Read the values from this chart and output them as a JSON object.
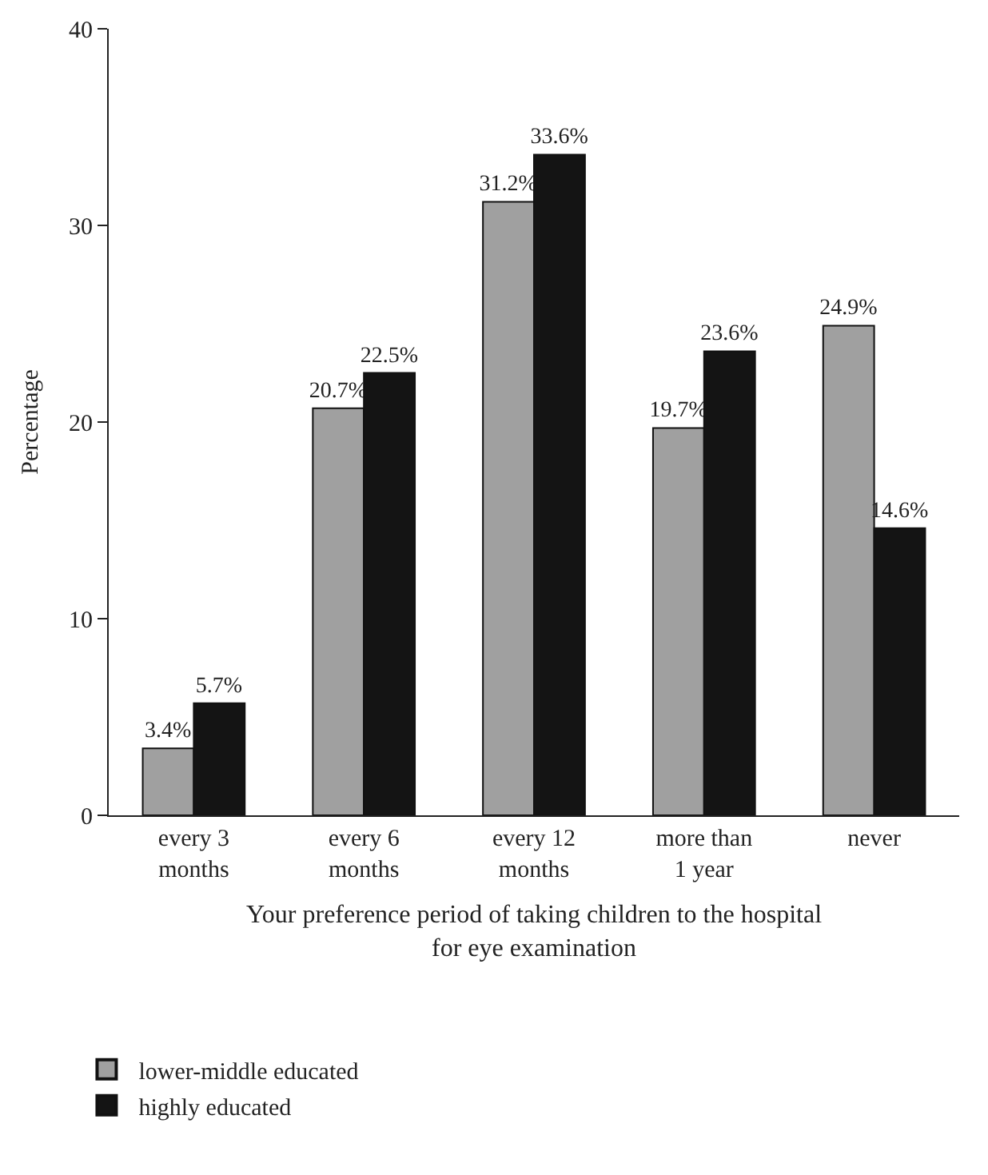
{
  "chart_data": {
    "type": "bar",
    "xlabel": "Your preference period of taking children to the hospital\nfor eye examination",
    "ylabel": "Percentage",
    "categories": [
      "every 3\nmonths",
      "every 6\nmonths",
      "every 12\nmonths",
      "more than\n1 year",
      "never"
    ],
    "series": [
      {
        "name": "lower-middle educated",
        "color": "#a0a0a0",
        "values": [
          3.4,
          20.7,
          31.2,
          19.7,
          24.9
        ],
        "value_labels": [
          "3.4%",
          "20.7%",
          "31.2%",
          "19.7%",
          "24.9%"
        ]
      },
      {
        "name": "highly educated",
        "color": "#141414",
        "values": [
          5.7,
          22.5,
          33.6,
          23.6,
          14.6
        ],
        "value_labels": [
          "5.7%",
          "22.5%",
          "33.6%",
          "23.6%",
          "14.6%"
        ]
      }
    ],
    "ylim": [
      0,
      40
    ],
    "yticks": [
      0,
      10,
      20,
      30,
      40
    ],
    "legend": "bottom left"
  }
}
